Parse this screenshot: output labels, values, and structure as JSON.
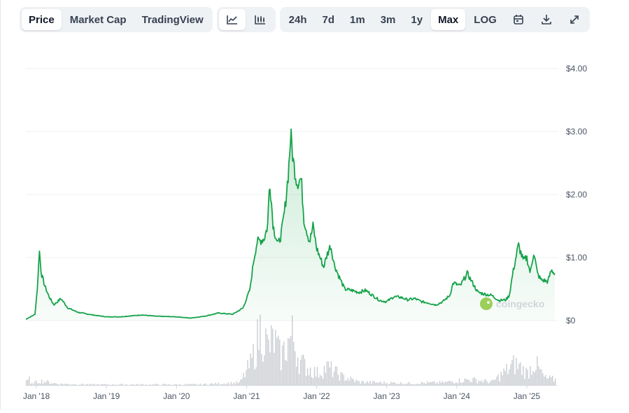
{
  "toolbar": {
    "view_tabs": [
      {
        "label": "Price",
        "active": true
      },
      {
        "label": "Market Cap",
        "active": false
      },
      {
        "label": "TradingView",
        "active": false
      }
    ],
    "chart_type_icons": [
      "line-chart-icon",
      "candlestick-chart-icon"
    ],
    "ranges": [
      {
        "label": "24h",
        "active": false
      },
      {
        "label": "7d",
        "active": false
      },
      {
        "label": "1m",
        "active": false
      },
      {
        "label": "3m",
        "active": false
      },
      {
        "label": "1y",
        "active": false
      },
      {
        "label": "Max",
        "active": true
      },
      {
        "label": "LOG",
        "active": false
      }
    ],
    "action_icons": [
      "calendar-icon",
      "download-icon",
      "expand-icon"
    ]
  },
  "watermark": "coingecko",
  "colors": {
    "line": "#16a34a",
    "area": "#16a34a",
    "volume": "#c9ccd1",
    "grid": "#eef0f2",
    "axis_text": "#4b5563"
  },
  "chart_data": {
    "type": "area",
    "ylim": [
      0,
      4
    ],
    "y_ticks": [
      {
        "value": 0,
        "label": "$0"
      },
      {
        "value": 1,
        "label": "$1.00"
      },
      {
        "value": 2,
        "label": "$2.00"
      },
      {
        "value": 3,
        "label": "$3.00"
      },
      {
        "value": 4,
        "label": "$4.00"
      }
    ],
    "xlim": [
      2017.85,
      2025.4
    ],
    "x_ticks": [
      {
        "value": 2018.0,
        "label": "Jan '18"
      },
      {
        "value": 2019.0,
        "label": "Jan '19"
      },
      {
        "value": 2020.0,
        "label": "Jan '20"
      },
      {
        "value": 2021.0,
        "label": "Jan '21"
      },
      {
        "value": 2022.0,
        "label": "Jan '22"
      },
      {
        "value": 2023.0,
        "label": "Jan '23"
      },
      {
        "value": 2024.0,
        "label": "Jan '24"
      },
      {
        "value": 2025.0,
        "label": "Jan '25"
      }
    ],
    "series": [
      {
        "points": [
          [
            2017.85,
            0.02
          ],
          [
            2017.98,
            0.1
          ],
          [
            2018.02,
            0.6
          ],
          [
            2018.04,
            1.15
          ],
          [
            2018.07,
            0.75
          ],
          [
            2018.12,
            0.55
          ],
          [
            2018.18,
            0.38
          ],
          [
            2018.25,
            0.25
          ],
          [
            2018.35,
            0.35
          ],
          [
            2018.45,
            0.2
          ],
          [
            2018.6,
            0.13
          ],
          [
            2018.8,
            0.09
          ],
          [
            2019.0,
            0.06
          ],
          [
            2019.2,
            0.06
          ],
          [
            2019.4,
            0.08
          ],
          [
            2019.5,
            0.09
          ],
          [
            2019.7,
            0.07
          ],
          [
            2020.0,
            0.06
          ],
          [
            2020.2,
            0.04
          ],
          [
            2020.4,
            0.07
          ],
          [
            2020.6,
            0.12
          ],
          [
            2020.8,
            0.1
          ],
          [
            2020.95,
            0.2
          ],
          [
            2021.05,
            0.5
          ],
          [
            2021.1,
            0.95
          ],
          [
            2021.15,
            1.25
          ],
          [
            2021.25,
            1.3
          ],
          [
            2021.3,
            1.5
          ],
          [
            2021.33,
            2.25
          ],
          [
            2021.38,
            1.5
          ],
          [
            2021.45,
            1.2
          ],
          [
            2021.5,
            1.4
          ],
          [
            2021.55,
            1.8
          ],
          [
            2021.6,
            2.4
          ],
          [
            2021.63,
            2.95
          ],
          [
            2021.67,
            2.5
          ],
          [
            2021.72,
            2.2
          ],
          [
            2021.78,
            2.25
          ],
          [
            2021.82,
            1.6
          ],
          [
            2021.9,
            1.25
          ],
          [
            2021.95,
            1.5
          ],
          [
            2022.0,
            1.15
          ],
          [
            2022.05,
            1.0
          ],
          [
            2022.1,
            0.85
          ],
          [
            2022.15,
            1.05
          ],
          [
            2022.2,
            1.2
          ],
          [
            2022.25,
            0.9
          ],
          [
            2022.3,
            0.75
          ],
          [
            2022.4,
            0.5
          ],
          [
            2022.5,
            0.48
          ],
          [
            2022.6,
            0.45
          ],
          [
            2022.7,
            0.48
          ],
          [
            2022.8,
            0.4
          ],
          [
            2022.9,
            0.32
          ],
          [
            2023.0,
            0.3
          ],
          [
            2023.1,
            0.38
          ],
          [
            2023.2,
            0.37
          ],
          [
            2023.3,
            0.33
          ],
          [
            2023.4,
            0.35
          ],
          [
            2023.5,
            0.3
          ],
          [
            2023.6,
            0.28
          ],
          [
            2023.7,
            0.25
          ],
          [
            2023.8,
            0.3
          ],
          [
            2023.9,
            0.4
          ],
          [
            2023.95,
            0.6
          ],
          [
            2024.05,
            0.55
          ],
          [
            2024.15,
            0.75
          ],
          [
            2024.2,
            0.65
          ],
          [
            2024.3,
            0.45
          ],
          [
            2024.4,
            0.42
          ],
          [
            2024.5,
            0.4
          ],
          [
            2024.6,
            0.32
          ],
          [
            2024.7,
            0.33
          ],
          [
            2024.75,
            0.4
          ],
          [
            2024.8,
            0.75
          ],
          [
            2024.88,
            1.2
          ],
          [
            2024.95,
            0.95
          ],
          [
            2025.0,
            1.0
          ],
          [
            2025.05,
            0.75
          ],
          [
            2025.1,
            1.1
          ],
          [
            2025.15,
            0.75
          ],
          [
            2025.2,
            0.65
          ],
          [
            2025.3,
            0.62
          ],
          [
            2025.35,
            0.8
          ],
          [
            2025.4,
            0.75
          ]
        ]
      }
    ],
    "volume": [
      [
        2017.9,
        0.02
      ],
      [
        2018.05,
        0.08
      ],
      [
        2018.3,
        0.03
      ],
      [
        2018.8,
        0.02
      ],
      [
        2019.5,
        0.02
      ],
      [
        2020.3,
        0.02
      ],
      [
        2020.9,
        0.05
      ],
      [
        2021.05,
        0.35
      ],
      [
        2021.12,
        0.6
      ],
      [
        2021.2,
        0.95
      ],
      [
        2021.3,
        0.6
      ],
      [
        2021.38,
        0.75
      ],
      [
        2021.48,
        0.45
      ],
      [
        2021.58,
        0.7
      ],
      [
        2021.65,
        0.8
      ],
      [
        2021.75,
        0.4
      ],
      [
        2021.85,
        0.3
      ],
      [
        2022.0,
        0.2
      ],
      [
        2022.15,
        0.3
      ],
      [
        2022.35,
        0.15
      ],
      [
        2022.6,
        0.06
      ],
      [
        2022.9,
        0.05
      ],
      [
        2023.3,
        0.04
      ],
      [
        2023.8,
        0.05
      ],
      [
        2024.0,
        0.08
      ],
      [
        2024.2,
        0.1
      ],
      [
        2024.5,
        0.06
      ],
      [
        2024.82,
        0.35
      ],
      [
        2024.9,
        0.3
      ],
      [
        2025.0,
        0.2
      ],
      [
        2025.1,
        0.38
      ],
      [
        2025.25,
        0.12
      ],
      [
        2025.4,
        0.1
      ]
    ]
  }
}
